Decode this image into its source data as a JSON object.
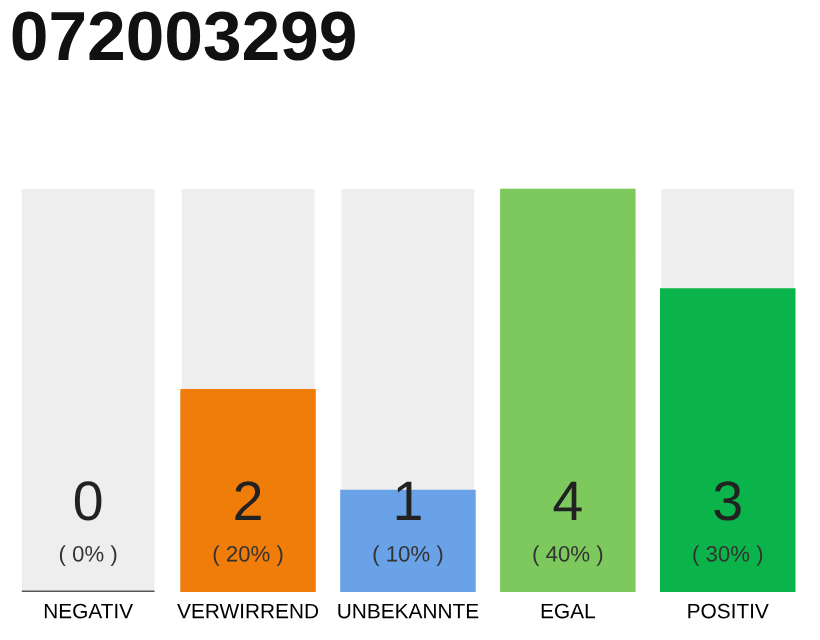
{
  "chart_data": {
    "type": "bar",
    "title": "072003299",
    "categories": [
      "NEGATIV",
      "VERWIRREND",
      "UNBEKANNTE",
      "EGAL",
      "POSITIV"
    ],
    "values": [
      0,
      2,
      1,
      4,
      3
    ],
    "colors": [
      "#555555",
      "#f07d0a",
      "#6aa2e8",
      "#7dc95e",
      "#0bb44a"
    ],
    "ylim": [
      0,
      4
    ],
    "data_labels": true,
    "tick_labels": "x",
    "annotations": [
      "( 0% )",
      "( 20% )",
      "( 10% )",
      "( 40% )",
      "( 30% )"
    ]
  }
}
